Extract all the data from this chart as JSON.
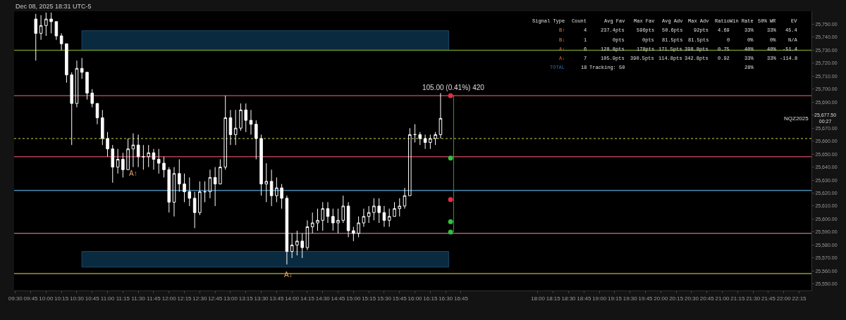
{
  "chart_data": [
    {
      "type": "candlestick",
      "annotations": [
        "Dec 08, 2025 18:31 UTC-5",
        {
          "text": "105.00 (0.41%) 420",
          "x": 16.63,
          "y": 25695
        },
        {
          "text": "A↑",
          "x": 11.417,
          "y": 25640
        },
        {
          "text": "A↓",
          "x": 13.94,
          "y": 25562
        },
        "NQZ2025",
        "25,677.50\n00:27"
      ],
      "series": [
        {
          "type": "candlestick",
          "color": "#ffffff",
          "x": [
            9.833,
            9.917,
            10,
            10.083,
            10.167,
            10.25,
            10.333,
            10.417,
            10.5,
            10.583,
            10.667,
            10.75,
            10.833,
            10.917,
            11,
            11.083,
            11.167,
            11.25,
            11.333,
            11.417,
            11.5,
            11.583,
            11.667,
            11.75,
            11.833,
            11.917,
            12,
            12.083,
            12.167,
            12.25,
            12.333,
            12.417,
            12.5,
            12.583,
            12.667,
            12.75,
            12.833,
            12.917,
            13,
            13.083,
            13.167,
            13.25,
            13.333,
            13.417,
            13.5,
            13.583,
            13.667,
            13.75,
            13.833,
            13.917,
            14,
            14.083,
            14.167,
            14.25,
            14.333,
            14.417,
            14.5,
            14.583,
            14.667,
            14.75,
            14.833,
            14.917,
            15,
            15.083,
            15.167,
            15.25,
            15.333,
            15.417,
            15.5,
            15.583,
            15.667,
            15.75,
            15.833,
            15.917,
            16,
            16.083,
            16.167,
            16.25,
            16.333,
            16.417
          ],
          "ohlc": [
            [
              25754,
              25758,
              25722,
              25743
            ],
            [
              25743,
              25757,
              25738,
              25749
            ],
            [
              25749,
              25759,
              25741,
              25754
            ],
            [
              25754,
              25759,
              25743,
              25752
            ],
            [
              25752,
              25752,
              25738,
              25741
            ],
            [
              25741,
              25743,
              25730,
              25735
            ],
            [
              25735,
              25735,
              25705,
              25711
            ],
            [
              25711,
              25713,
              25657,
              25689
            ],
            [
              25689,
              25722,
              25686,
              25716
            ],
            [
              25716,
              25724,
              25708,
              25713
            ],
            [
              25713,
              25713,
              25692,
              25697
            ],
            [
              25697,
              25700,
              25686,
              25689
            ],
            [
              25689,
              25689,
              25673,
              25678
            ],
            [
              25678,
              25684,
              25657,
              25662
            ],
            [
              25662,
              25667,
              25648,
              25654
            ],
            [
              25654,
              25657,
              25628,
              25640
            ],
            [
              25640,
              25654,
              25635,
              25646
            ],
            [
              25646,
              25651,
              25632,
              25638
            ],
            [
              25638,
              25662,
              25638,
              25654
            ],
            [
              25654,
              25666,
              25640,
              25657
            ],
            [
              25657,
              25665,
              25640,
              25648
            ],
            [
              25648,
              25657,
              25638,
              25648
            ],
            [
              25648,
              25657,
              25640,
              25651
            ],
            [
              25651,
              25654,
              25638,
              25646
            ],
            [
              25646,
              25654,
              25635,
              25643
            ],
            [
              25643,
              25648,
              25632,
              25638
            ],
            [
              25638,
              25640,
              25605,
              25613
            ],
            [
              25613,
              25640,
              25602,
              25635
            ],
            [
              25635,
              25646,
              25621,
              25627
            ],
            [
              25627,
              25635,
              25613,
              25621
            ],
            [
              25621,
              25632,
              25610,
              25616
            ],
            [
              25616,
              25621,
              25593,
              25605
            ],
            [
              25605,
              25629,
              25603,
              25621
            ],
            [
              25621,
              25629,
              25613,
              25621
            ],
            [
              25621,
              25638,
              25616,
              25632
            ],
            [
              25632,
              25640,
              25610,
              25627
            ],
            [
              25627,
              25646,
              25627,
              25640
            ],
            [
              25640,
              25695,
              25638,
              25678
            ],
            [
              25678,
              25684,
              25657,
              25665
            ],
            [
              25665,
              25684,
              25657,
              25670
            ],
            [
              25670,
              25689,
              25668,
              25684
            ],
            [
              25684,
              25689,
              25667,
              25676
            ],
            [
              25676,
              25684,
              25665,
              25673
            ],
            [
              25673,
              25676,
              25646,
              25662
            ],
            [
              25662,
              25665,
              25618,
              25627
            ],
            [
              25627,
              25643,
              25613,
              25629
            ],
            [
              25629,
              25638,
              25610,
              25618
            ],
            [
              25618,
              25632,
              25613,
              25624
            ],
            [
              25624,
              25627,
              25608,
              25616
            ],
            [
              25616,
              25618,
              25565,
              25575
            ],
            [
              25575,
              25589,
              25570,
              25580
            ],
            [
              25580,
              25591,
              25572,
              25583
            ],
            [
              25583,
              25589,
              25570,
              25578
            ],
            [
              25578,
              25599,
              25576,
              25594
            ],
            [
              25594,
              25605,
              25589,
              25597
            ],
            [
              25597,
              25608,
              25591,
              25599
            ],
            [
              25599,
              25613,
              25591,
              25608
            ],
            [
              25608,
              25613,
              25597,
              25602
            ],
            [
              25602,
              25608,
              25591,
              25597
            ],
            [
              25597,
              25608,
              25589,
              25599
            ],
            [
              25599,
              25618,
              25597,
              25610
            ],
            [
              25610,
              25613,
              25586,
              25591
            ],
            [
              25591,
              25594,
              25583,
              25589
            ],
            [
              25589,
              25602,
              25586,
              25597
            ],
            [
              25597,
              25608,
              25594,
              25602
            ],
            [
              25602,
              25610,
              25597,
              25605
            ],
            [
              25605,
              25616,
              25599,
              25610
            ],
            [
              25610,
              25616,
              25597,
              25605
            ],
            [
              25605,
              25610,
              25594,
              25599
            ],
            [
              25599,
              25608,
              25594,
              25602
            ],
            [
              25602,
              25613,
              25602,
              25608
            ],
            [
              25608,
              25616,
              25602,
              25610
            ],
            [
              25610,
              25624,
              25608,
              25618
            ],
            [
              25618,
              25670,
              25618,
              25665
            ],
            [
              25665,
              25673,
              25659,
              25665
            ],
            [
              25665,
              25667,
              25657,
              25662
            ],
            [
              25662,
              25665,
              25654,
              25659
            ],
            [
              25659,
              25665,
              25654,
              25662
            ],
            [
              25662,
              25667,
              25657,
              25665
            ],
            [
              25665,
              25697,
              25662,
              25677.5
            ]
          ]
        },
        {
          "type": "scatter",
          "marker": "circle",
          "x": [
            16.58,
            16.58,
            16.58,
            16.58,
            16.58
          ],
          "values": [
            25695,
            25647,
            25615,
            25598,
            25590
          ],
          "colors": [
            "#e03040",
            "#30c040",
            "#e03040",
            "#30c040",
            "#30c040"
          ]
        },
        {
          "type": "line",
          "x": [
            16.63,
            16.63
          ],
          "values": [
            25695,
            25590
          ],
          "color": "#2e9e2e"
        }
      ],
      "ref_lines": [
        {
          "axis": "y",
          "value": 25730,
          "color": "#6b8e23"
        },
        {
          "axis": "y",
          "value": 25558,
          "color": "#9a9a2a"
        },
        {
          "axis": "y",
          "value": 25695,
          "color": "#b04050"
        },
        {
          "axis": "y",
          "value": 25648,
          "color": "#b04050"
        },
        {
          "axis": "y",
          "value": 25622,
          "color": "#4a8ab0"
        },
        {
          "axis": "y",
          "value": 25589,
          "color": "#a06080"
        },
        {
          "axis": "y",
          "value": 25662,
          "color": "#8a8a30",
          "line_style": "dotted"
        }
      ],
      "bands": [
        {
          "axis": "y",
          "from": 25730,
          "to": 25745,
          "color": "#0a2a40"
        },
        {
          "axis": "y",
          "from": 25563,
          "to": 25575,
          "color": "#0a2a40"
        }
      ],
      "grid": false,
      "xlim": [
        9.48,
        22.45
      ],
      "ylim": [
        25545,
        25760
      ],
      "xticks": [
        {
          "value": 9.5,
          "label": "09:30"
        },
        {
          "value": 9.75,
          "label": "09:45"
        },
        {
          "value": 10,
          "label": "10:00"
        },
        {
          "value": 10.25,
          "label": "10:15"
        },
        {
          "value": 10.5,
          "label": "10:30"
        },
        {
          "value": 10.75,
          "label": "10:45"
        },
        {
          "value": 11,
          "label": "11:00"
        },
        {
          "value": 11.25,
          "label": "11:15"
        },
        {
          "value": 11.5,
          "label": "11:30"
        },
        {
          "value": 11.75,
          "label": "11:45"
        },
        {
          "value": 12,
          "label": "12:00"
        },
        {
          "value": 12.25,
          "label": "12:15"
        },
        {
          "value": 12.5,
          "label": "12:30"
        },
        {
          "value": 12.75,
          "label": "12:45"
        },
        {
          "value": 13,
          "label": "13:00"
        },
        {
          "value": 13.25,
          "label": "13:15"
        },
        {
          "value": 13.5,
          "label": "13:30"
        },
        {
          "value": 13.75,
          "label": "13:45"
        },
        {
          "value": 14,
          "label": "14:00"
        },
        {
          "value": 14.25,
          "label": "14:15"
        },
        {
          "value": 14.5,
          "label": "14:30"
        },
        {
          "value": 14.75,
          "label": "14:45"
        },
        {
          "value": 15,
          "label": "15:00"
        },
        {
          "value": 15.25,
          "label": "15:15"
        },
        {
          "value": 15.5,
          "label": "15:30"
        },
        {
          "value": 15.75,
          "label": "15:45"
        },
        {
          "value": 16,
          "label": "16:00"
        },
        {
          "value": 16.25,
          "label": "16:15"
        },
        {
          "value": 16.5,
          "label": "16:30"
        },
        {
          "value": 16.75,
          "label": "16:45"
        },
        {
          "value": 18,
          "label": "18:00"
        },
        {
          "value": 18.25,
          "label": "18:15"
        },
        {
          "value": 18.5,
          "label": "18:30"
        },
        {
          "value": 18.75,
          "label": "18:45"
        },
        {
          "value": 19,
          "label": "19:00"
        },
        {
          "value": 19.25,
          "label": "19:15"
        },
        {
          "value": 19.5,
          "label": "19:30"
        },
        {
          "value": 19.75,
          "label": "19:45"
        },
        {
          "value": 20,
          "label": "20:00"
        },
        {
          "value": 20.25,
          "label": "20:15"
        },
        {
          "value": 20.5,
          "label": "20:30"
        },
        {
          "value": 20.75,
          "label": "20:45"
        },
        {
          "value": 21,
          "label": "21:00"
        },
        {
          "value": 21.25,
          "label": "21:15"
        },
        {
          "value": 21.5,
          "label": "21:30"
        },
        {
          "value": 21.75,
          "label": "21:45"
        },
        {
          "value": 22,
          "label": "22:00"
        },
        {
          "value": 22.25,
          "label": "22:15"
        }
      ],
      "yticks": [
        {
          "value": 25550,
          "label": "25,550.00"
        },
        {
          "value": 25560,
          "label": "25,560.00"
        },
        {
          "value": 25570,
          "label": "25,570.00"
        },
        {
          "value": 25580,
          "label": "25,580.00"
        },
        {
          "value": 25590,
          "label": "25,590.00"
        },
        {
          "value": 25600,
          "label": "25,600.00"
        },
        {
          "value": 25610,
          "label": "25,610.00"
        },
        {
          "value": 25620,
          "label": "25,620.00"
        },
        {
          "value": 25630,
          "label": "25,630.00"
        },
        {
          "value": 25640,
          "label": "25,640.00"
        },
        {
          "value": 25650,
          "label": "25,650.00"
        },
        {
          "value": 25660,
          "label": "25,660.00"
        },
        {
          "value": 25670,
          "label": "25,670.00"
        },
        {
          "value": 25680,
          "label": null
        },
        {
          "value": 25690,
          "label": "25,690.00"
        },
        {
          "value": 25700,
          "label": "25,700.00"
        },
        {
          "value": 25710,
          "label": "25,710.00"
        },
        {
          "value": 25720,
          "label": "25,720.00"
        },
        {
          "value": 25730,
          "label": "25,730.00"
        },
        {
          "value": 25740,
          "label": "25,740.00"
        },
        {
          "value": 25750,
          "label": "25,750.00"
        }
      ]
    },
    {
      "type": "other",
      "categories": [
        "Signal Type",
        "Count",
        "Avg Fav",
        "Max Fav",
        "Avg Adv",
        "Max Adv",
        "Ratio",
        "Win Rate",
        "50% WR",
        "EV"
      ],
      "colors": [
        "#d98a5a",
        "#d98a5a",
        "#e0603a",
        "#e0603a",
        "#2a6fb0"
      ],
      "cell_labels": [
        [
          "B↑",
          "4",
          "237.4pts",
          "596pts",
          "50.6pts",
          "92pts",
          "4.69",
          "33%",
          "33%",
          "45.4"
        ],
        [
          "B↓",
          "1",
          "0pts",
          "0pts",
          "81.5pts",
          "81.5pts",
          "0",
          "0%",
          "0%",
          "N/A"
        ],
        [
          "A↑",
          "6",
          "128.8pts",
          "178pts",
          "171.5pts",
          "398.8pts",
          "0.75",
          "40%",
          "40%",
          "-51.4"
        ],
        [
          "A↓",
          "7",
          "105.9pts",
          "390.5pts",
          "114.8pts",
          "342.8pts",
          "0.92",
          "33%",
          "33%",
          "-114.8"
        ],
        [
          "TOTAL",
          "18",
          "Tracking: 50",
          null,
          null,
          null,
          null,
          "28%",
          null,
          null
        ]
      ]
    }
  ]
}
